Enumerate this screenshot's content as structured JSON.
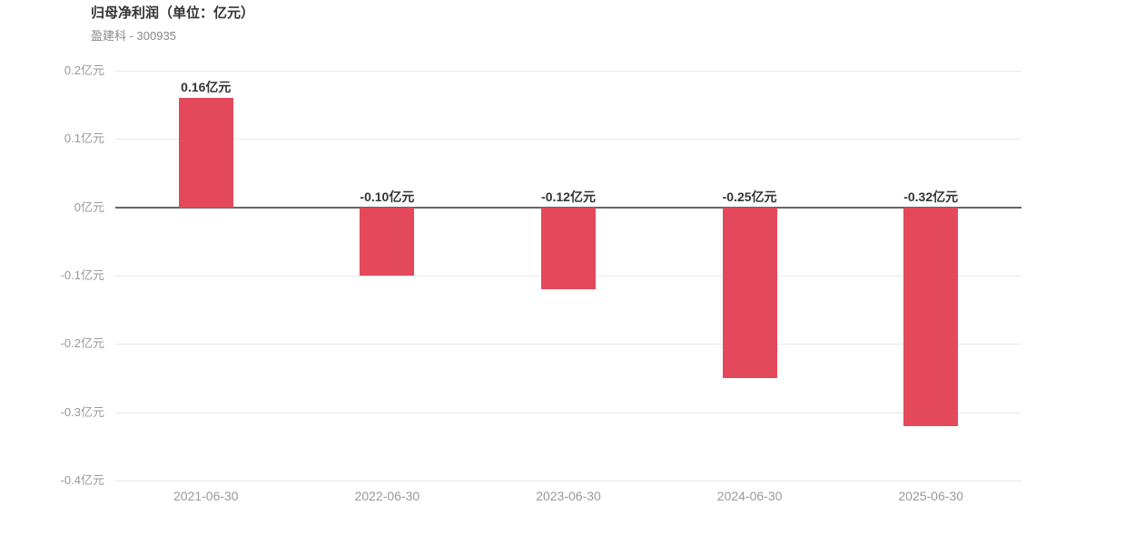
{
  "chart_data": {
    "type": "bar",
    "title": "归母净利润（单位：亿元）",
    "subtitle": "盈建科 - 300935",
    "categories": [
      "2021-06-30",
      "2022-06-30",
      "2023-06-30",
      "2024-06-30",
      "2025-06-30"
    ],
    "values": [
      0.16,
      -0.1,
      -0.12,
      -0.25,
      -0.32
    ],
    "value_labels": [
      "0.16亿元",
      "-0.10亿元",
      "-0.12亿元",
      "-0.25亿元",
      "-0.32亿元"
    ],
    "unit": "亿元",
    "ylim": [
      -0.4,
      0.2
    ],
    "yticks": [
      0.2,
      0.1,
      0,
      -0.1,
      -0.2,
      -0.3,
      -0.4
    ],
    "ytick_labels": [
      "0.2亿元",
      "0.1亿元",
      "0亿元",
      "-0.1亿元",
      "-0.2亿元",
      "-0.3亿元",
      "-0.4亿元"
    ],
    "grid": true,
    "legend_position": "none",
    "colors": {
      "bar": "#e4495b",
      "grid": "#e8e8e8",
      "zero_line": "#666666",
      "title": "#333333",
      "subtitle": "#888888",
      "value_label": "#333333",
      "axis_text": "#999999"
    }
  }
}
